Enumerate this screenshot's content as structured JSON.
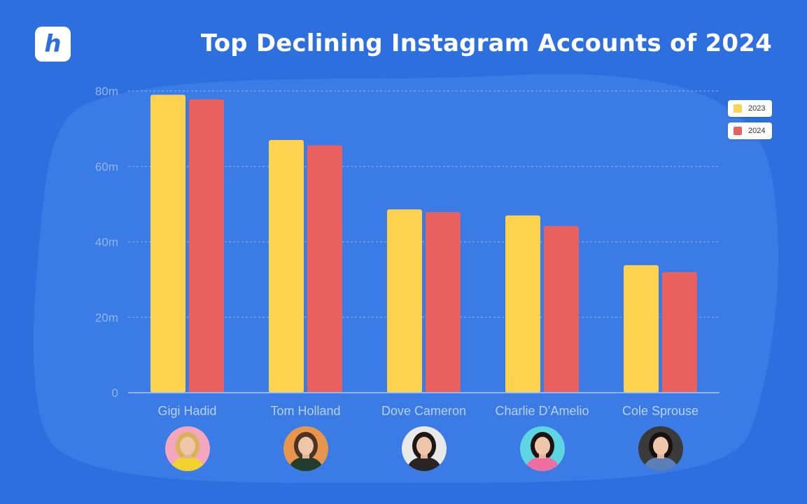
{
  "title": "Top Declining Instagram Accounts of 2024",
  "logo": {
    "letter": "h",
    "icon": "brand-logo-icon"
  },
  "colors": {
    "background": "#2e6fe0",
    "blob": "#3a7be6",
    "series_2023": "#fdd24f",
    "series_2024": "#e9615f",
    "grid": "#8db4f2",
    "axis_text": "#8fb6f2",
    "category_text": "#b9d0f7"
  },
  "legend": [
    {
      "label": "2023",
      "color": "#fdd24f"
    },
    {
      "label": "2024",
      "color": "#e9615f"
    }
  ],
  "chart_data": {
    "type": "bar",
    "title": "Top Declining Instagram Accounts of 2024",
    "xlabel": "",
    "ylabel": "",
    "categories": [
      "Gigi Hadid",
      "Tom Holland",
      "Dove Cameron",
      "Charlie D’Amelio",
      "Cole Sprouse"
    ],
    "series": [
      {
        "name": "2023",
        "values": [
          79,
          67,
          48.6,
          47,
          33.8
        ]
      },
      {
        "name": "2024",
        "values": [
          77.8,
          65.6,
          47.9,
          44.2,
          32
        ]
      }
    ],
    "ylim": [
      0,
      80
    ],
    "yticks": [
      0,
      20,
      40,
      60,
      80
    ],
    "ytick_labels": [
      "0",
      "20m",
      "40m",
      "60m",
      "80m"
    ],
    "grid": true,
    "legend_position": "top-right"
  },
  "avatars": [
    {
      "icon": "gigi-hadid-portrait-icon",
      "bg": "#f4a6bd",
      "hair": "#d8b25a",
      "shirt": "#f2d22c"
    },
    {
      "icon": "tom-holland-portrait-icon",
      "bg": "#e8964e",
      "hair": "#4b3424",
      "shirt": "#233d2c"
    },
    {
      "icon": "dove-cameron-portrait-icon",
      "bg": "#e9e9ea",
      "hair": "#1d1716",
      "shirt": "#2a2525"
    },
    {
      "icon": "charlie-damelio-portrait-icon",
      "bg": "#5ed6e2",
      "hair": "#1b1414",
      "shirt": "#ee6fa0"
    },
    {
      "icon": "cole-sprouse-portrait-icon",
      "bg": "#3a3a3a",
      "hair": "#16120f",
      "shirt": "#5b7fb8"
    }
  ]
}
